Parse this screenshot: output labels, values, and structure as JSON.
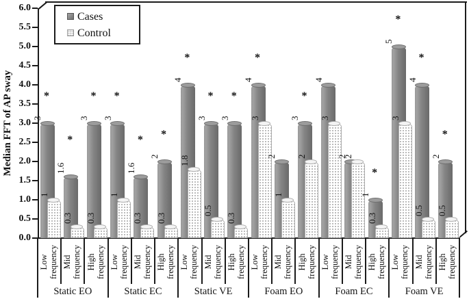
{
  "legend": {
    "items": [
      {
        "label": "Cases",
        "marker": "cases-swatch"
      },
      {
        "label": "Control",
        "marker": "control-swatch"
      }
    ]
  },
  "chart_data": {
    "type": "bar",
    "title": "",
    "xlabel": "",
    "ylabel": "Median FFT of AP sway",
    "ylim": [
      0,
      6
    ],
    "ytick_step": 0.5,
    "grid": false,
    "legend_position": "top-left",
    "significance_marker": "*",
    "groups": [
      "Static EO",
      "Static EC",
      "Static VE",
      "Foam EO",
      "Foam EC",
      "Foam VE"
    ],
    "subcategories": [
      "Low\nfrequency",
      "Mid\nfrequency",
      "High\nfrequency"
    ],
    "series": [
      {
        "name": "Cases",
        "style": "solid-gray-cylinder",
        "values": [
          [
            3,
            1.6,
            3
          ],
          [
            3,
            1.6,
            2
          ],
          [
            4,
            3,
            3
          ],
          [
            4,
            2,
            3
          ],
          [
            4,
            2,
            1
          ],
          [
            5,
            4,
            2
          ]
        ],
        "significance": [
          [
            true,
            true,
            true
          ],
          [
            true,
            true,
            true
          ],
          [
            true,
            true,
            true
          ],
          [
            true,
            false,
            true
          ],
          [
            false,
            false,
            true
          ],
          [
            true,
            true,
            true
          ]
        ]
      },
      {
        "name": "Control",
        "style": "dotted-white-cylinder",
        "values": [
          [
            1,
            0.3,
            0.3
          ],
          [
            1,
            0.3,
            0.3
          ],
          [
            1.8,
            0.5,
            0.3
          ],
          [
            3,
            1,
            2
          ],
          [
            3,
            2,
            0.3
          ],
          [
            3,
            0.5,
            0.5
          ]
        ]
      }
    ],
    "colors": {
      "cases_fill": "#7f7f7f",
      "control_fill": "#ffffff",
      "control_dots": "#8c8c8c",
      "frame": "#1a1a1a"
    }
  }
}
